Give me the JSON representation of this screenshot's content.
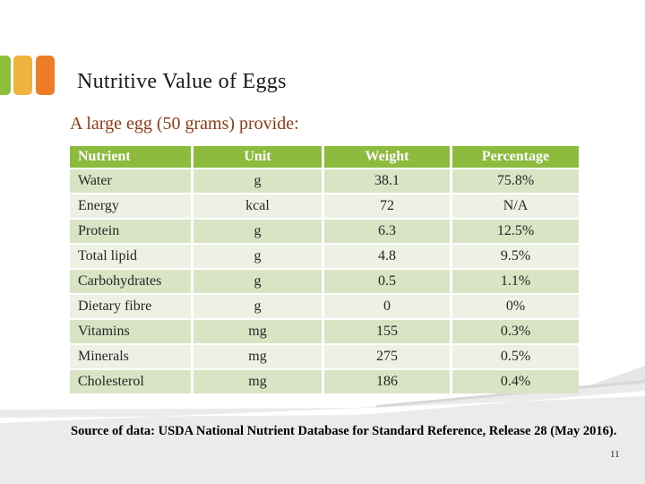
{
  "slide": {
    "title": "Nutritive Value of Eggs",
    "subtitle": "A large egg (50 grams) provide:",
    "source_note": "Source of data: USDA National Nutrient Database for Standard Reference, Release 28 (May 2016).",
    "page_number": "11"
  },
  "table": {
    "columns": [
      "Nutrient",
      "Unit",
      "Weight",
      "Percentage"
    ],
    "rows": [
      [
        "Water",
        "g",
        "38.1",
        "75.8%"
      ],
      [
        "Energy",
        "kcal",
        "72",
        "N/A"
      ],
      [
        "Protein",
        "g",
        "6.3",
        "12.5%"
      ],
      [
        "Total lipid",
        "g",
        "4.8",
        "9.5%"
      ],
      [
        "Carbohydrates",
        "g",
        "0.5",
        "1.1%"
      ],
      [
        "Dietary fibre",
        "g",
        "0",
        "0%"
      ],
      [
        "Vitamins",
        "mg",
        "155",
        "0.3%"
      ],
      [
        "Minerals",
        "mg",
        "275",
        "0.5%"
      ],
      [
        "Cholesterol",
        "mg",
        "186",
        "0.4%"
      ]
    ]
  },
  "colors": {
    "header_bg": "#8CBB3E",
    "row_odd": "#D9E4C4",
    "row_even": "#EDF1E4",
    "square_green": "#8FBE3B",
    "square_yellow": "#F1B33F",
    "square_orange": "#EC7D26",
    "title_text": "#1A1A1A",
    "subtitle_text": "#8A3D15",
    "cell_text": "#262626",
    "gray_band": "#EBEBEB"
  }
}
